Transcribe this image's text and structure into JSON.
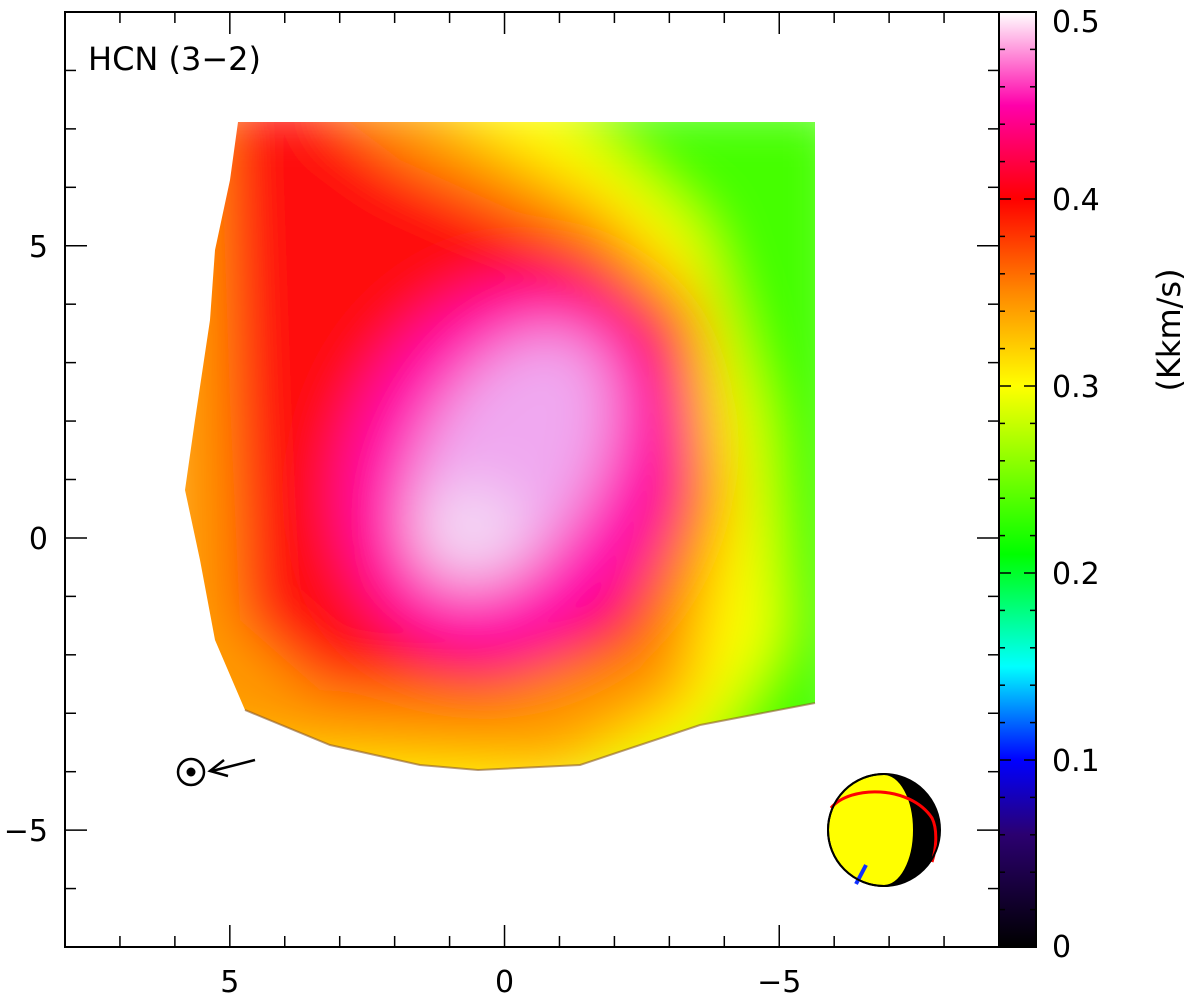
{
  "chart_data": {
    "type": "heatmap",
    "map_label": "HCN (3−2)",
    "x_ticks": [
      "5",
      "0",
      "−5"
    ],
    "y_ticks": [
      "5",
      "0",
      "−5"
    ],
    "x_range": [
      8,
      -9
    ],
    "y_range": [
      -7,
      9
    ],
    "x_tick_values": [
      5,
      0,
      -5
    ],
    "y_tick_values": [
      5,
      0,
      -5
    ],
    "x_minor_step": 1,
    "y_minor_step": 1,
    "data_extent": {
      "x": [
        5,
        -6
      ],
      "y": [
        -3.6,
        7.1
      ]
    },
    "peak": {
      "x": 0,
      "y": 0.3,
      "value": 0.48
    },
    "secondary_peak": {
      "x": -1.7,
      "y": 2.6,
      "value": 0.47
    },
    "contour_levels": [
      0.25,
      0.3,
      0.35,
      0.4,
      0.45
    ],
    "sun_marker": {
      "x": 5,
      "y": -4
    },
    "colorbar": {
      "title": "(Kkm/s)",
      "range": [
        0,
        0.5
      ],
      "ticks": [
        "0",
        "0.1",
        "0.2",
        "0.3",
        "0.4",
        "0.5"
      ],
      "tick_values": [
        0,
        0.1,
        0.2,
        0.3,
        0.4,
        0.5
      ]
    },
    "colormap": [
      "#000000",
      "#0000ff",
      "#00ffff",
      "#00ff00",
      "#ffff00",
      "#ff8800",
      "#ff0000",
      "#ff00aa",
      "#ffffff"
    ]
  }
}
